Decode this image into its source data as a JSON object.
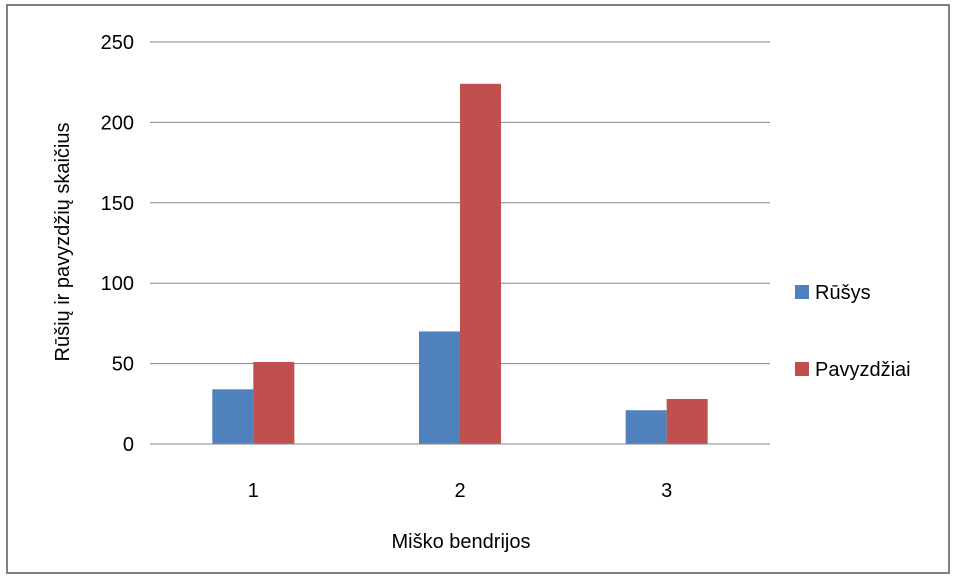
{
  "chart_data": {
    "type": "bar",
    "title": "",
    "xlabel": "Miško bendrijos",
    "ylabel": "Rūšių ir pavyzdžių skaičius",
    "categories": [
      "1",
      "2",
      "3"
    ],
    "series": [
      {
        "name": "Rūšys",
        "values": [
          34,
          70,
          21
        ],
        "color": "#4f81bd"
      },
      {
        "name": "Pavyzdžiai",
        "values": [
          51,
          224,
          28
        ],
        "color": "#c0504d"
      }
    ],
    "ylim": [
      0,
      250
    ],
    "yticks": [
      "0",
      "50",
      "100",
      "150",
      "200",
      "250"
    ],
    "grid": true,
    "legend": "right"
  }
}
